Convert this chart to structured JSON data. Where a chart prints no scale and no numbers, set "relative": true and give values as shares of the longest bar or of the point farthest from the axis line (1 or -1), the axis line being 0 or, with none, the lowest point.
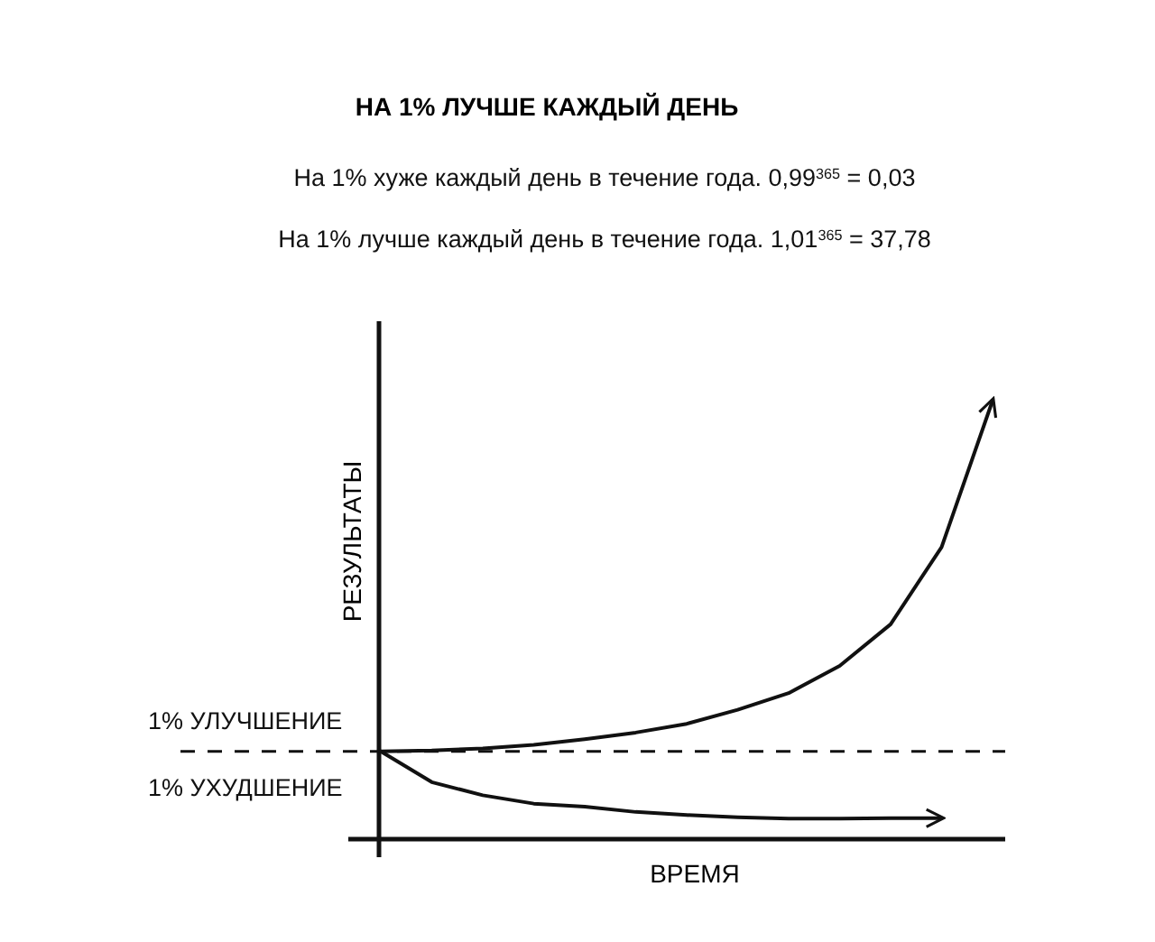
{
  "chart_data": {
    "type": "line",
    "title": "НА 1% ЛУЧШЕ КАЖДЫЙ ДЕНЬ",
    "xlabel": "ВРЕМЯ",
    "ylabel": "РЕЗУЛЬТАТЫ",
    "relative": true,
    "marker": "none",
    "line_style": "solid",
    "categories": [
      null,
      null,
      null,
      null,
      null,
      null,
      null,
      null,
      null,
      null,
      null,
      null,
      null
    ],
    "series": [
      {
        "color": "#111111",
        "values": [
          0.2,
          0.202,
          0.207,
          0.215,
          0.228,
          0.243,
          0.263,
          0.295,
          0.333,
          0.395,
          0.49,
          0.666,
          1.0
        ]
      },
      {
        "color": "#111111",
        "values": [
          0.2,
          0.13,
          0.1,
          0.081,
          0.074,
          0.062,
          0.055,
          0.05,
          0.047,
          0.047,
          0.048,
          0.048,
          null
        ]
      }
    ],
    "ref_lines": [
      {
        "axis": "y",
        "value": 0.2,
        "line_style": "dashed",
        "color": "#111111"
      }
    ],
    "annotations": [
      "На 1% хуже каждый день в течение года. 0,99$^{365}$ = 0,03",
      "На 1% лучше каждый день в течение года. 1,01$^{365}$ = 37,78",
      "1% УЛУЧШЕНИЕ",
      "1% УХУДШЕНИЕ"
    ]
  }
}
